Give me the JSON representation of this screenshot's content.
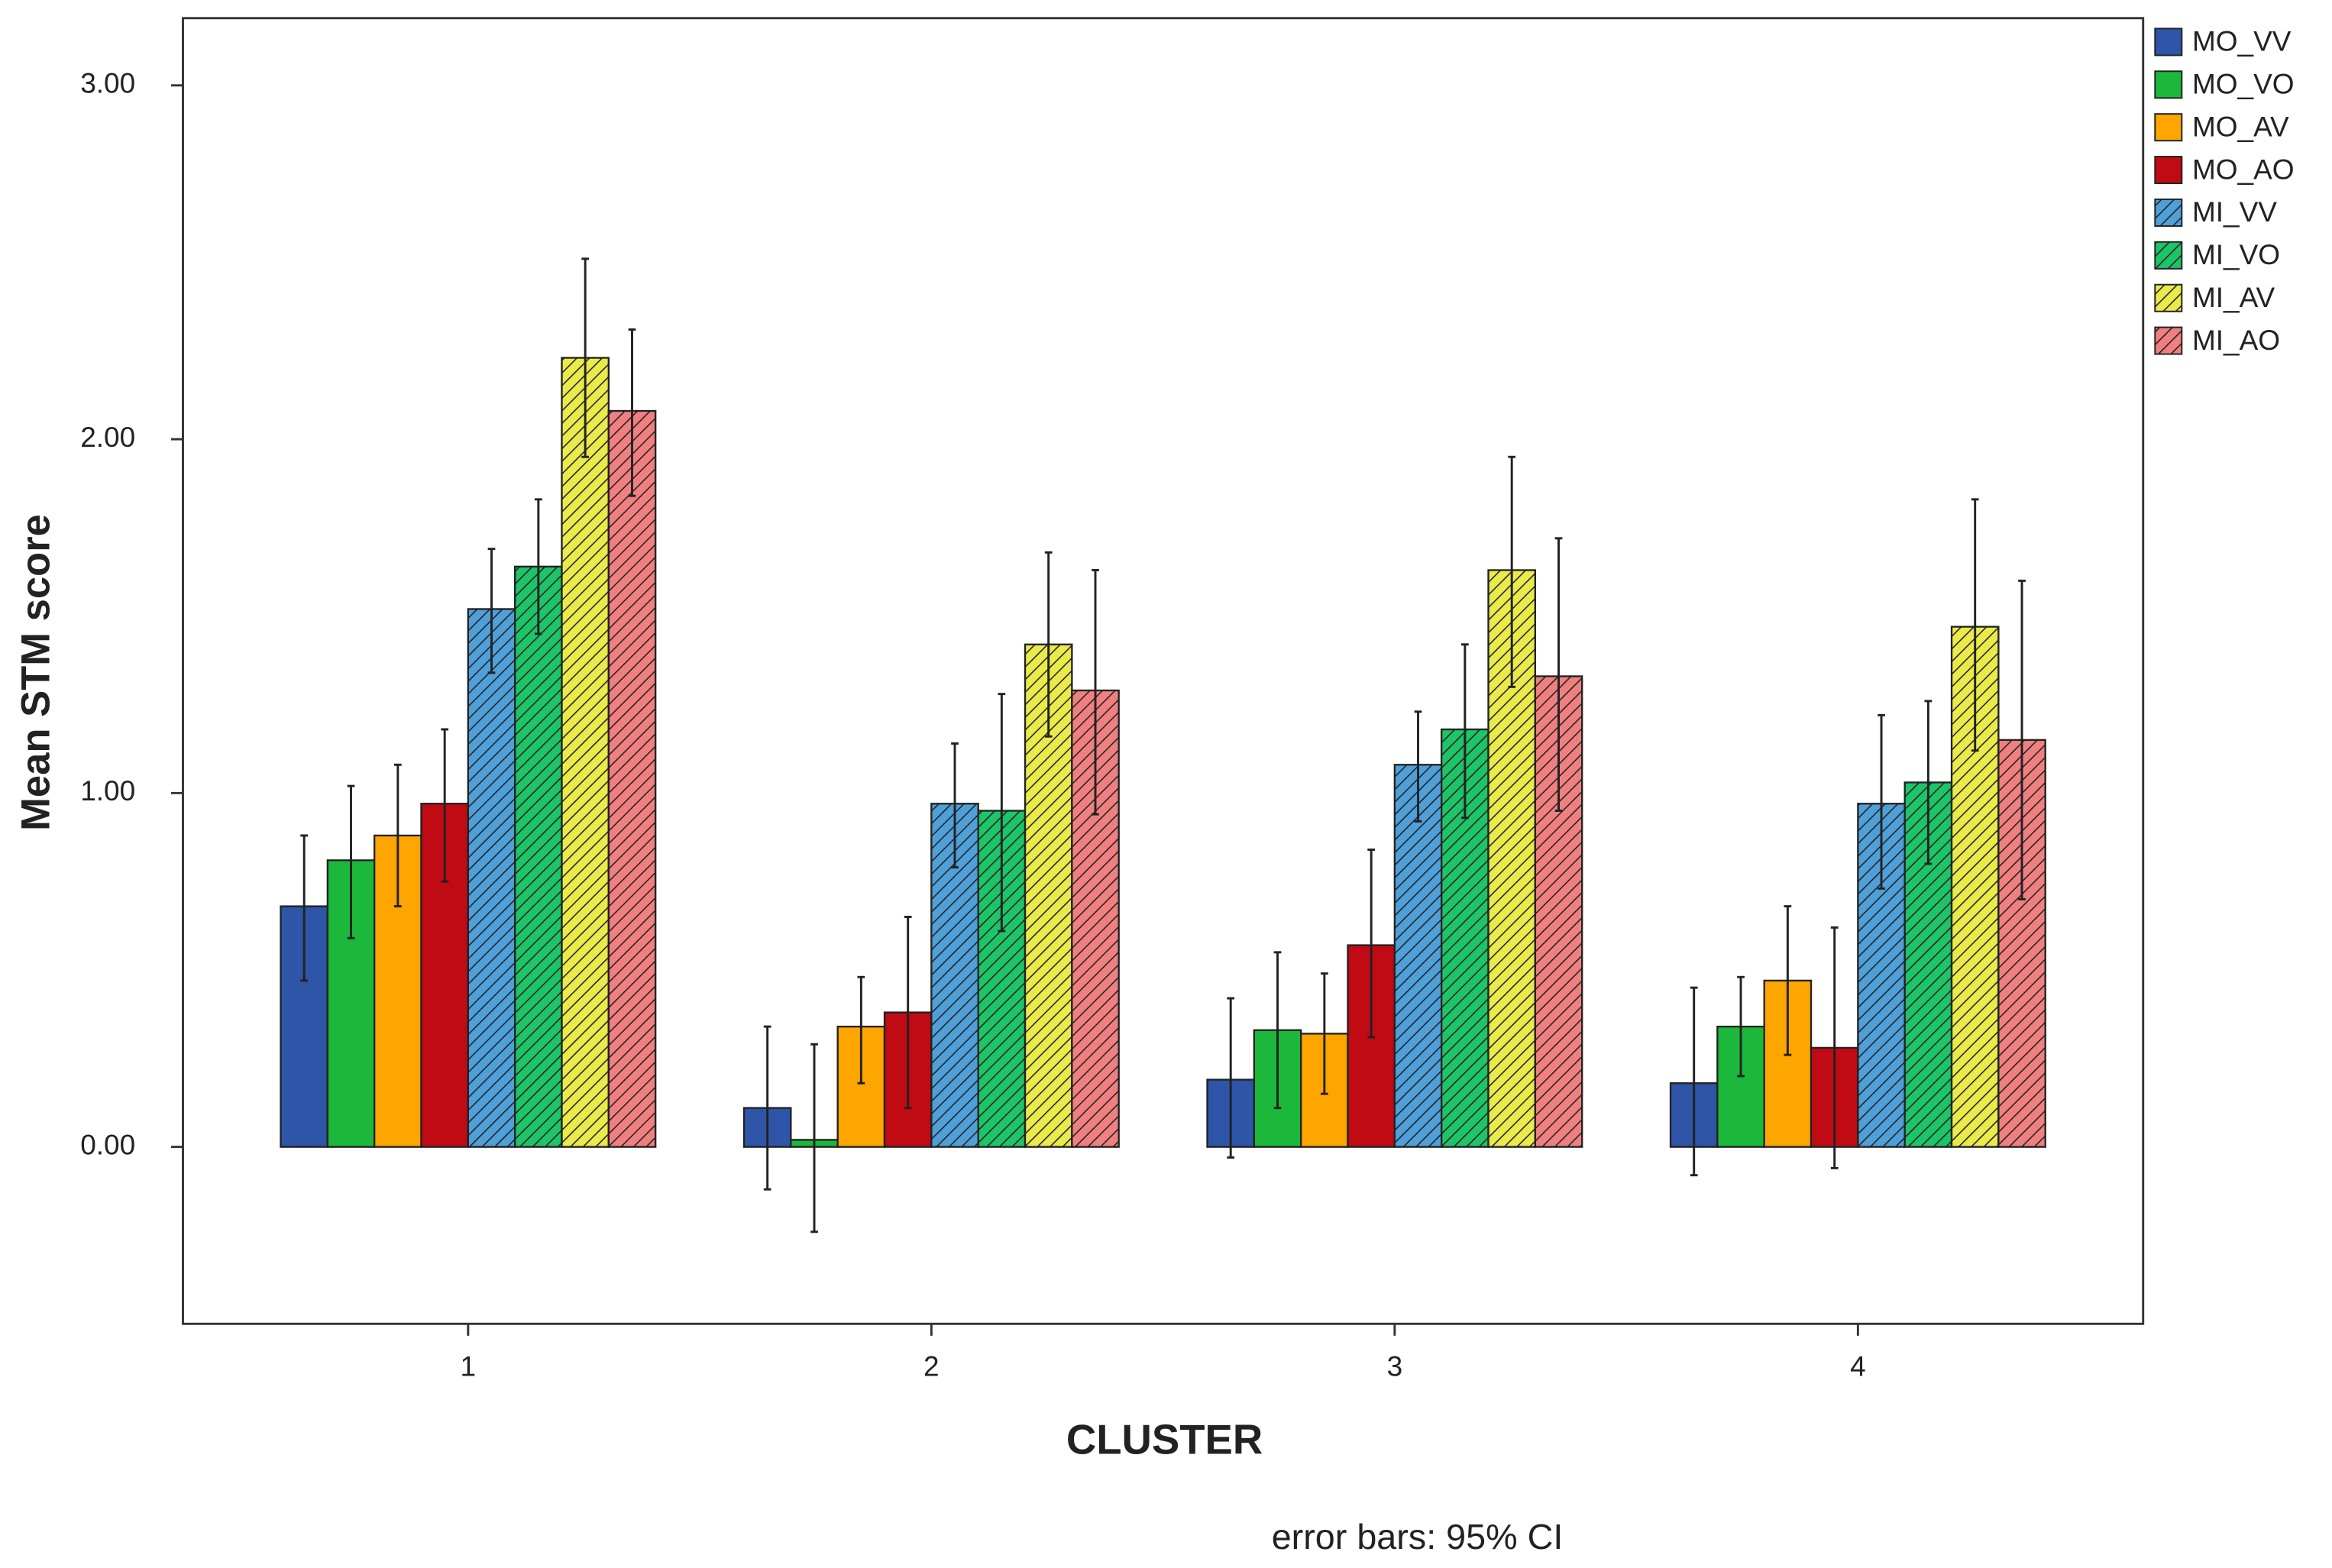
{
  "chart_data": {
    "type": "bar",
    "y_label": "Mean STM score",
    "x_label": "CLUSTER",
    "note": "error bars: 95% CI",
    "categories": [
      "1",
      "2",
      "3",
      "4"
    ],
    "ylim": [
      -0.5,
      3.19
    ],
    "yticks": [
      {
        "value": 0,
        "label": "0.00"
      },
      {
        "value": 1,
        "label": "1.00"
      },
      {
        "value": 2,
        "label": "2.00"
      },
      {
        "value": 3,
        "label": "3.00"
      }
    ],
    "legend": "outside-right",
    "series": [
      {
        "name": "MO_VV",
        "color": "#2e55a8",
        "values": [
          0.68,
          0.11,
          0.19,
          0.18
        ],
        "ci_low": [
          0.47,
          -0.12,
          -0.03,
          -0.08
        ],
        "ci_high": [
          0.88,
          0.34,
          0.42,
          0.45
        ]
      },
      {
        "name": "MO_VO",
        "color": "#1bb83c",
        "values": [
          0.81,
          0.02,
          0.33,
          0.34
        ],
        "ci_low": [
          0.59,
          -0.24,
          0.11,
          0.2
        ],
        "ci_high": [
          1.02,
          0.29,
          0.55,
          0.48
        ]
      },
      {
        "name": "MO_AV",
        "color": "#ffa500",
        "values": [
          0.88,
          0.34,
          0.32,
          0.47
        ],
        "ci_low": [
          0.68,
          0.18,
          0.15,
          0.26
        ],
        "ci_high": [
          1.08,
          0.48,
          0.49,
          0.68
        ]
      },
      {
        "name": "MO_AO",
        "color": "#c00a14",
        "values": [
          0.97,
          0.38,
          0.57,
          0.28
        ],
        "ci_low": [
          0.75,
          0.11,
          0.31,
          -0.06
        ],
        "ci_high": [
          1.18,
          0.65,
          0.84,
          0.62
        ]
      },
      {
        "name": "MI_VV",
        "color": "#4f9fd8",
        "pattern": "hatch",
        "values": [
          1.52,
          0.97,
          1.08,
          0.97
        ],
        "ci_low": [
          1.34,
          0.79,
          0.92,
          0.73
        ],
        "ci_high": [
          1.69,
          1.14,
          1.23,
          1.22
        ]
      },
      {
        "name": "MI_VO",
        "color": "#1dc468",
        "pattern": "hatch",
        "values": [
          1.64,
          0.95,
          1.18,
          1.03
        ],
        "ci_low": [
          1.45,
          0.61,
          0.93,
          0.8
        ],
        "ci_high": [
          1.83,
          1.28,
          1.42,
          1.26
        ]
      },
      {
        "name": "MI_AV",
        "color": "#eaea4a",
        "pattern": "hatch",
        "values": [
          2.23,
          1.42,
          1.63,
          1.47
        ],
        "ci_low": [
          1.95,
          1.16,
          1.3,
          1.12
        ],
        "ci_high": [
          2.51,
          1.68,
          1.95,
          1.83
        ]
      },
      {
        "name": "MI_AO",
        "color": "#f08080",
        "pattern": "hatch",
        "values": [
          2.08,
          1.29,
          1.33,
          1.15
        ],
        "ci_low": [
          1.84,
          0.94,
          0.95,
          0.7
        ],
        "ci_high": [
          2.31,
          1.63,
          1.72,
          1.6
        ]
      }
    ]
  }
}
